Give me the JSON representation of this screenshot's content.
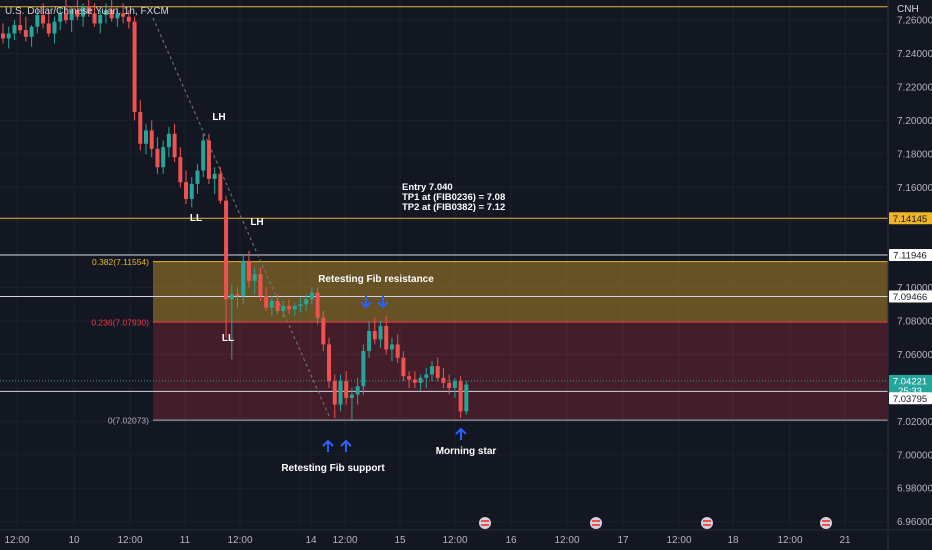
{
  "header": {
    "symbol_title": "U.S. Dollar/Chinese Yuan, 1h, FXCM",
    "currency": "CNH"
  },
  "chart_data": {
    "type": "candlestick",
    "instrument": "U.S. Dollar/Chinese Yuan",
    "timeframe": "1h",
    "source": "FXCM",
    "ylim": [
      6.955,
      7.272
    ],
    "y_ticks": [
      "7.26000",
      "7.24000",
      "7.22000",
      "7.20000",
      "7.18000",
      "7.16000",
      "7.14000",
      "7.12000",
      "7.10000",
      "7.08000",
      "7.06000",
      "7.04000",
      "7.02000",
      "7.00000",
      "6.98000",
      "6.96000"
    ],
    "x_ticks": [
      "12:00",
      "10",
      "12:00",
      "11",
      "12:00",
      "12:00",
      "14",
      "12:00",
      "15",
      "12:00",
      "16",
      "12:00",
      "17",
      "12:00",
      "18",
      "12:00",
      "21"
    ],
    "horizontal_lines": [
      {
        "price": 7.268,
        "color": "#f0b429"
      },
      {
        "price": 7.14145,
        "color": "#f0b429"
      },
      {
        "price": 7.11946,
        "color": "#d1d4dc"
      },
      {
        "price": 7.09466,
        "color": "#d1d4dc"
      },
      {
        "price": 7.03795,
        "color": "#d1d4dc"
      }
    ],
    "price_labels": [
      {
        "text": "7.14145",
        "price": 7.14145,
        "bg": "#f0b429",
        "fg": "#131722"
      },
      {
        "text": "7.11946",
        "price": 7.11946,
        "bg": "#ffffff",
        "fg": "#131722"
      },
      {
        "text": "7.09466",
        "price": 7.09466,
        "bg": "#ffffff",
        "fg": "#131722"
      },
      {
        "text": "7.04221",
        "price": 7.0442,
        "bg": "#26a69a",
        "fg": "#ffffff"
      },
      {
        "text": "25:33",
        "price": 7.0385,
        "bg": "#26a69a",
        "fg": "#ffffff"
      },
      {
        "text": "7.03795",
        "price": 7.0338,
        "bg": "#ffffff",
        "fg": "#131722"
      }
    ],
    "fibonacci": {
      "levels": [
        {
          "label": "0.382(7.11554)",
          "value": 7.11554,
          "color": "#f0b429"
        },
        {
          "label": "0.236(7.07930)",
          "value": 7.0793,
          "color": "#f23645"
        },
        {
          "label": "0(7.02073)",
          "value": 7.02073,
          "color": "#b2b5be"
        }
      ]
    },
    "candles": [
      [
        7.252,
        7.258,
        7.246,
        7.249
      ],
      [
        7.249,
        7.256,
        7.243,
        7.252
      ],
      [
        7.252,
        7.26,
        7.248,
        7.257
      ],
      [
        7.257,
        7.265,
        7.252,
        7.254
      ],
      [
        7.254,
        7.262,
        7.247,
        7.25
      ],
      [
        7.25,
        7.257,
        7.244,
        7.256
      ],
      [
        7.256,
        7.268,
        7.252,
        7.263
      ],
      [
        7.263,
        7.27,
        7.255,
        7.258
      ],
      [
        7.258,
        7.266,
        7.25,
        7.252
      ],
      [
        7.252,
        7.262,
        7.246,
        7.259
      ],
      [
        7.259,
        7.268,
        7.254,
        7.264
      ],
      [
        7.264,
        7.272,
        7.258,
        7.26
      ],
      [
        7.26,
        7.268,
        7.253,
        7.266
      ],
      [
        7.266,
        7.272,
        7.26,
        7.262
      ],
      [
        7.262,
        7.27,
        7.256,
        7.268
      ],
      [
        7.268,
        7.272,
        7.262,
        7.264
      ],
      [
        7.264,
        7.27,
        7.256,
        7.258
      ],
      [
        7.258,
        7.266,
        7.252,
        7.263
      ],
      [
        7.263,
        7.27,
        7.258,
        7.266
      ],
      [
        7.266,
        7.272,
        7.259,
        7.261
      ],
      [
        7.261,
        7.268,
        7.256,
        7.264
      ],
      [
        7.264,
        7.27,
        7.258,
        7.262
      ],
      [
        7.262,
        7.266,
        7.255,
        7.259
      ],
      [
        7.259,
        7.262,
        7.2,
        7.205
      ],
      [
        7.205,
        7.212,
        7.182,
        7.186
      ],
      [
        7.186,
        7.198,
        7.18,
        7.194
      ],
      [
        7.194,
        7.2,
        7.178,
        7.183
      ],
      [
        7.183,
        7.19,
        7.168,
        7.172
      ],
      [
        7.172,
        7.188,
        7.168,
        7.184
      ],
      [
        7.184,
        7.196,
        7.178,
        7.192
      ],
      [
        7.192,
        7.198,
        7.175,
        7.178
      ],
      [
        7.178,
        7.184,
        7.16,
        7.163
      ],
      [
        7.163,
        7.17,
        7.15,
        7.153
      ],
      [
        7.153,
        7.166,
        7.148,
        7.162
      ],
      [
        7.162,
        7.174,
        7.156,
        7.17
      ],
      [
        7.17,
        7.192,
        7.166,
        7.188
      ],
      [
        7.188,
        7.192,
        7.162,
        7.165
      ],
      [
        7.165,
        7.172,
        7.156,
        7.168
      ],
      [
        7.168,
        7.172,
        7.15,
        7.152
      ],
      [
        7.152,
        7.155,
        7.07,
        7.093
      ],
      [
        7.093,
        7.102,
        7.057,
        7.096
      ],
      [
        7.096,
        7.1,
        7.088,
        7.095
      ],
      [
        7.095,
        7.12,
        7.09,
        7.116
      ],
      [
        7.116,
        7.122,
        7.1,
        7.104
      ],
      [
        7.104,
        7.112,
        7.096,
        7.108
      ],
      [
        7.108,
        7.112,
        7.092,
        7.095
      ],
      [
        7.095,
        7.1,
        7.086,
        7.088
      ],
      [
        7.088,
        7.095,
        7.083,
        7.092
      ],
      [
        7.092,
        7.096,
        7.084,
        7.086
      ],
      [
        7.086,
        7.092,
        7.082,
        7.089
      ],
      [
        7.089,
        7.093,
        7.084,
        7.087
      ],
      [
        7.087,
        7.091,
        7.083,
        7.089
      ],
      [
        7.089,
        7.094,
        7.085,
        7.09
      ],
      [
        7.09,
        7.096,
        7.086,
        7.093
      ],
      [
        7.093,
        7.1,
        7.09,
        7.097
      ],
      [
        7.097,
        7.1,
        7.078,
        7.082
      ],
      [
        7.082,
        7.086,
        7.062,
        7.066
      ],
      [
        7.066,
        7.07,
        7.04,
        7.044
      ],
      [
        7.044,
        7.048,
        7.022,
        7.03
      ],
      [
        7.03,
        7.048,
        7.026,
        7.044
      ],
      [
        7.044,
        7.05,
        7.03,
        7.034
      ],
      [
        7.034,
        7.04,
        7.021,
        7.036
      ],
      [
        7.036,
        7.046,
        7.03,
        7.041
      ],
      [
        7.041,
        7.066,
        7.036,
        7.062
      ],
      [
        7.062,
        7.08,
        7.058,
        7.074
      ],
      [
        7.074,
        7.082,
        7.066,
        7.069
      ],
      [
        7.069,
        7.08,
        7.064,
        7.077
      ],
      [
        7.077,
        7.083,
        7.06,
        7.063
      ],
      [
        7.063,
        7.07,
        7.056,
        7.066
      ],
      [
        7.066,
        7.072,
        7.055,
        7.058
      ],
      [
        7.058,
        7.062,
        7.044,
        7.047
      ],
      [
        7.047,
        7.05,
        7.04,
        7.045
      ],
      [
        7.045,
        7.05,
        7.04,
        7.043
      ],
      [
        7.043,
        7.048,
        7.038,
        7.046
      ],
      [
        7.046,
        7.052,
        7.04,
        7.048
      ],
      [
        7.048,
        7.056,
        7.044,
        7.053
      ],
      [
        7.053,
        7.058,
        7.044,
        7.046
      ],
      [
        7.046,
        7.052,
        7.04,
        7.043
      ],
      [
        7.043,
        7.048,
        7.036,
        7.04
      ],
      [
        7.04,
        7.046,
        7.034,
        7.044
      ],
      [
        7.044,
        7.047,
        7.022,
        7.026
      ],
      [
        7.026,
        7.044,
        7.024,
        7.042
      ]
    ],
    "annotations": [
      {
        "text": "LH",
        "color": "#ffffff"
      },
      {
        "text": "LL",
        "color": "#ffffff"
      },
      {
        "text": "LH",
        "color": "#ffffff"
      },
      {
        "text": "LL",
        "color": "#ffffff"
      },
      {
        "text": "Retesting Fib resistance",
        "color": "#ffffff"
      },
      {
        "text": "Retesting Fib support",
        "color": "#ffffff"
      },
      {
        "text": "Morning star",
        "color": "#ffffff"
      }
    ],
    "trade_note": [
      "Entry 7.040",
      "TP1  at (FIB0236) = 7.08",
      "TP2  at (FIB0382) = 7.12"
    ],
    "colors": {
      "up": "#26a69a",
      "down": "#ef5350",
      "arrow": "#2962ff"
    }
  }
}
